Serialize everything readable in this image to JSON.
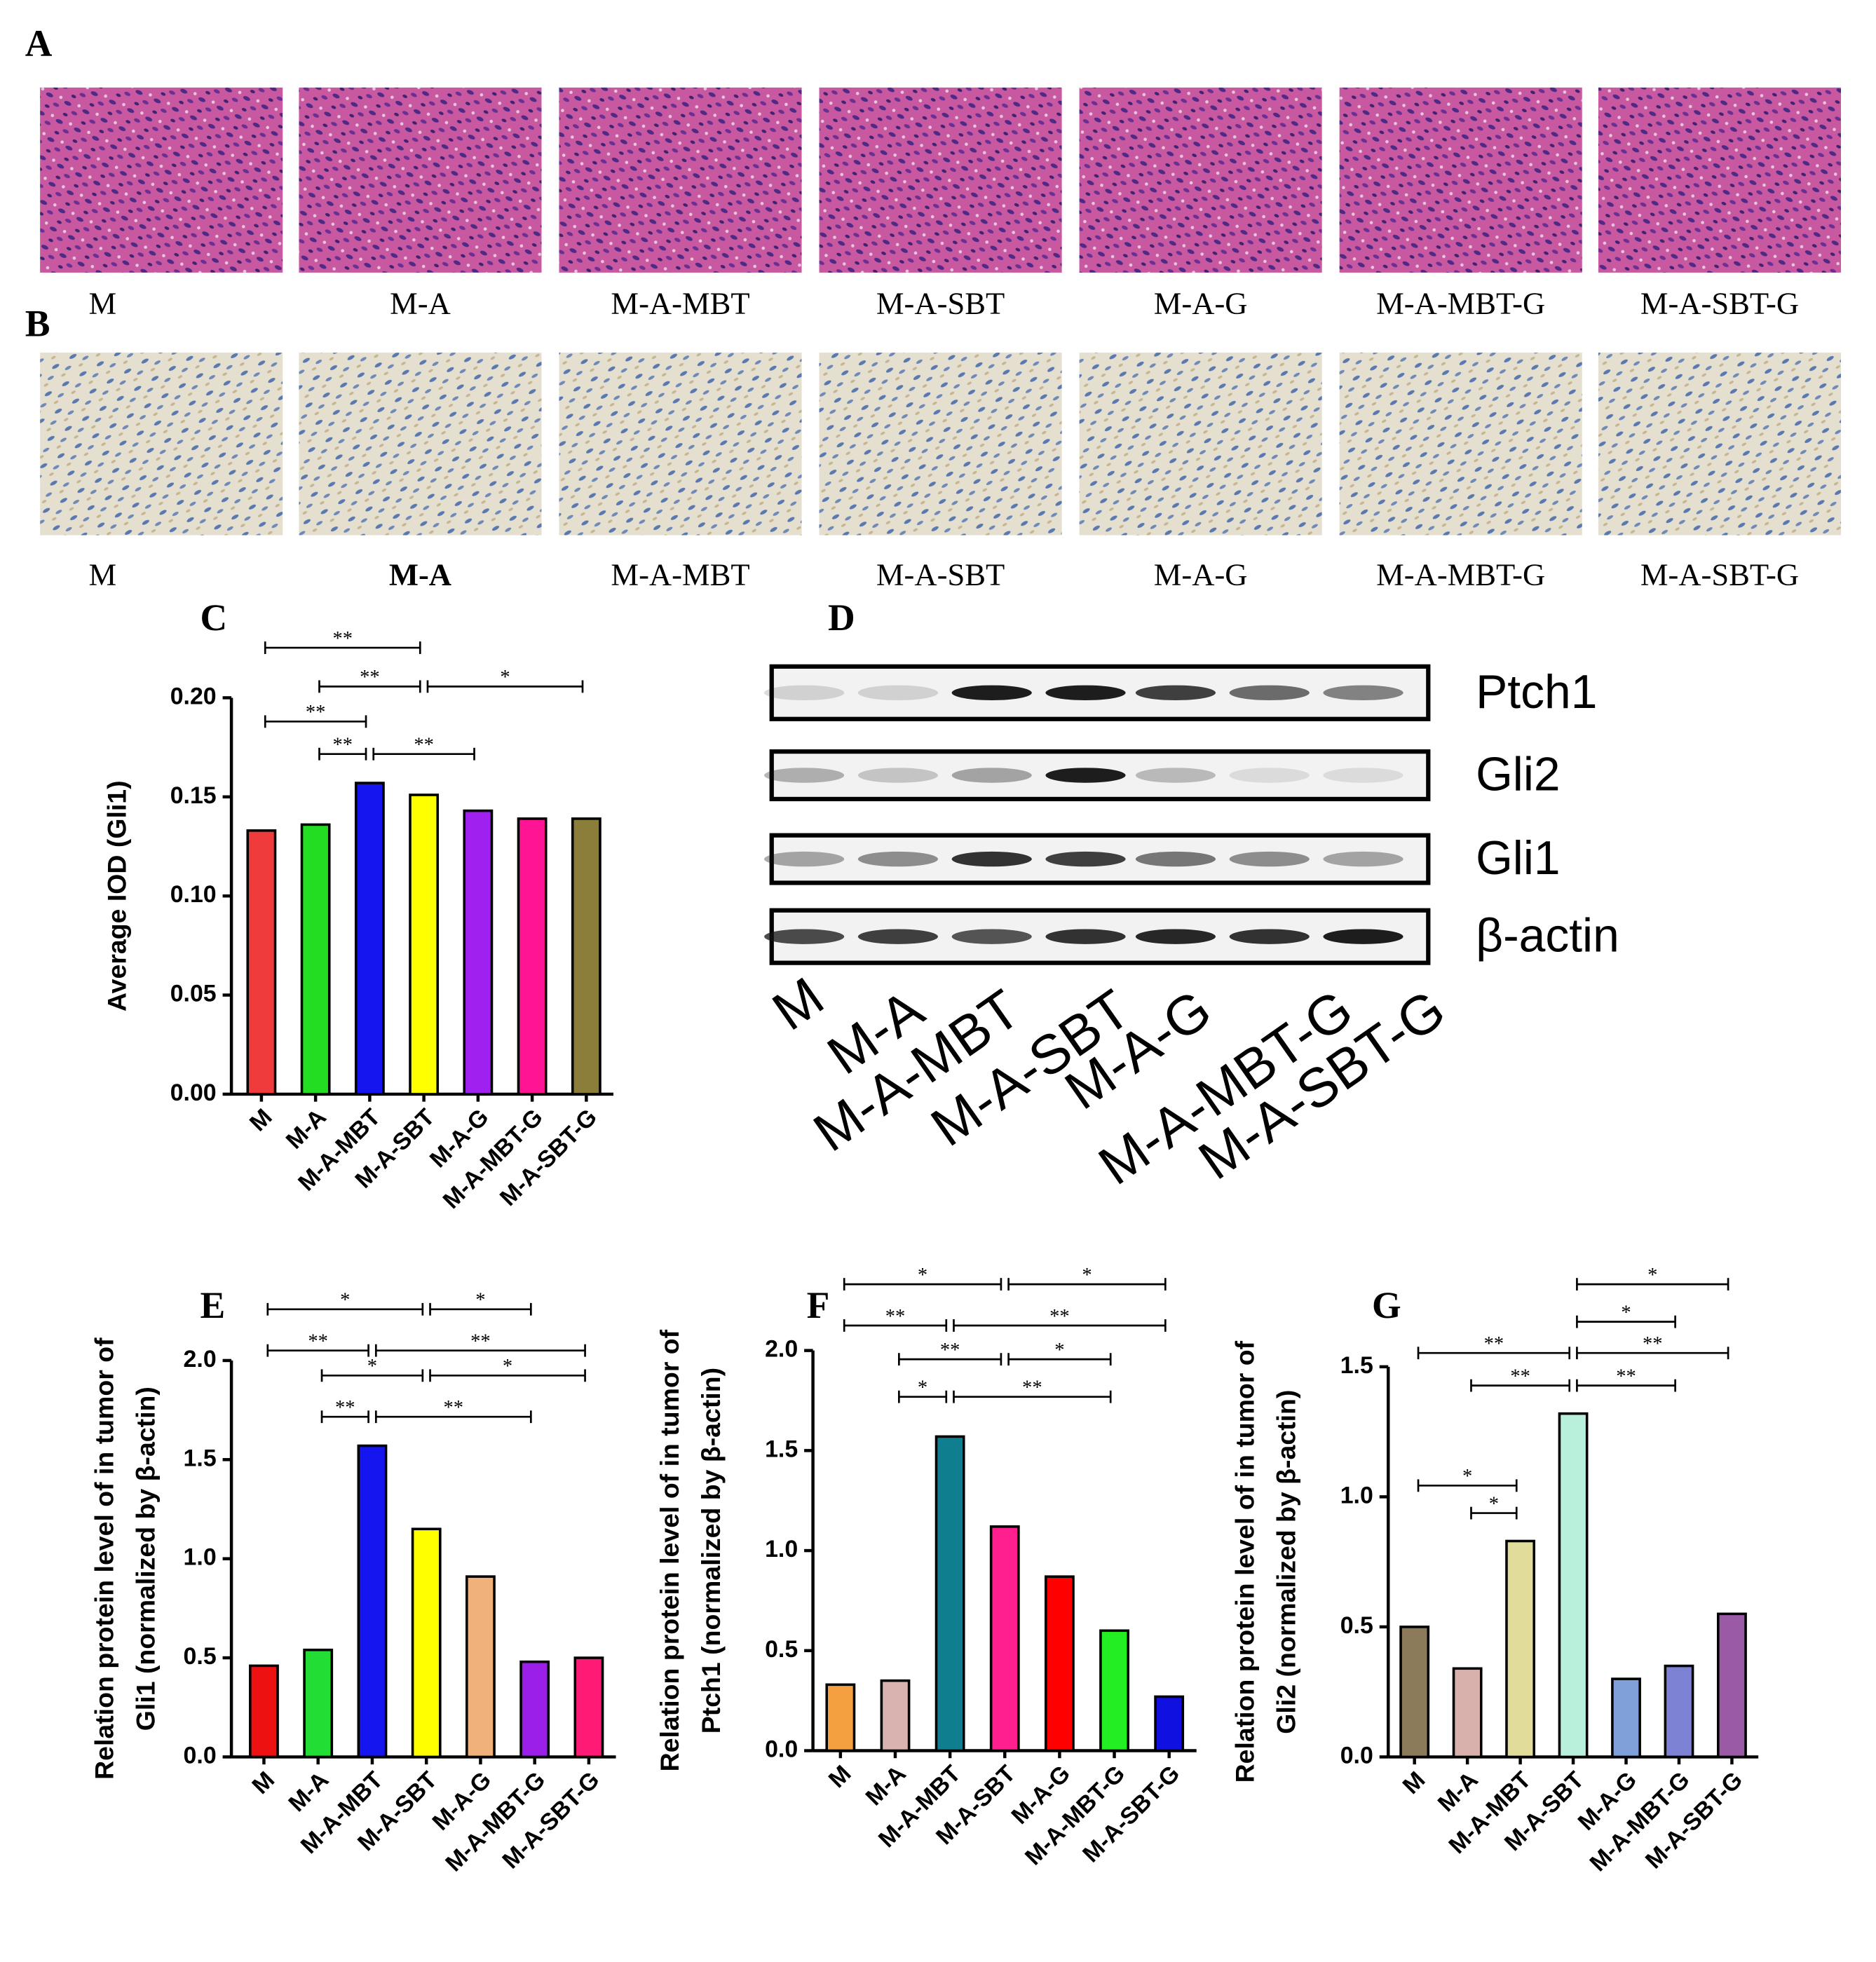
{
  "panel_labels": [
    "A",
    "B",
    "C",
    "D",
    "E",
    "F",
    "G"
  ],
  "he_stain": {
    "labels": [
      "M",
      "M-A",
      "M-A-MBT",
      "M-A-SBT",
      "M-A-G",
      "M-A-MBT-G",
      "M-A-SBT-G"
    ]
  },
  "ihc_stain": {
    "labels": [
      "M",
      "M-A",
      "M-A-MBT",
      "M-A-SBT",
      "M-A-G",
      "M-A-MBT-G",
      "M-A-SBT-G"
    ]
  },
  "western_blot": {
    "proteins": [
      "Ptch1",
      "Gli2",
      "Gli1",
      "β-actin"
    ],
    "lanes": [
      "M",
      "M-A",
      "M-A-MBT",
      "M-A-SBT",
      "M-A-G",
      "M-A-MBT-G",
      "M-A-SBT-G"
    ]
  },
  "chart_data": [
    {
      "type": "bar",
      "ylabel": [
        "Average IOD (Gli1)"
      ],
      "categories": [
        "M",
        "M-A",
        "M-A-MBT",
        "M-A-SBT",
        "M-A-G",
        "M-A-MBT-G",
        "M-A-SBT-G"
      ],
      "values": [
        0.133,
        0.136,
        0.157,
        0.151,
        0.143,
        0.139,
        0.139
      ],
      "colors": [
        "#ef3b3b",
        "#22dd22",
        "#1515f0",
        "#ffff00",
        "#a020f0",
        "#ff1493",
        "#8b7d3a"
      ],
      "ylim": [
        0,
        0.2
      ],
      "yticks": [
        {
          "value": 0,
          "label": "0.00"
        },
        0.05,
        {
          "value": 0.1,
          "label": "0.10"
        },
        0.15,
        {
          "value": 0.2,
          "label": "0.20"
        }
      ],
      "annotations": [
        "**",
        "**",
        "*",
        "**",
        "**",
        "**"
      ]
    },
    {
      "type": "bar",
      "ylabel": [
        "Relation protein level of in tumor of",
        "Gli1 (normalized by β-actin)"
      ],
      "categories": [
        "M",
        "M-A",
        "M-A-MBT",
        "M-A-SBT",
        "M-A-G",
        "M-A-MBT-G",
        "M-A-SBT-G"
      ],
      "values": [
        0.46,
        0.54,
        1.57,
        1.15,
        0.91,
        0.48,
        0.5
      ],
      "colors": [
        "#ee1111",
        "#22dd33",
        "#1515f0",
        "#ffff00",
        "#f0b27a",
        "#9b1fe8",
        "#ff1a75"
      ],
      "ylim": [
        0,
        2
      ],
      "yticks": [
        {
          "value": 0,
          "label": "0.0"
        },
        0.5,
        {
          "value": 1,
          "label": "1.0"
        },
        1.5,
        {
          "value": 2,
          "label": "2.0"
        }
      ],
      "annotations": [
        "*",
        "*",
        "**",
        "**",
        "*",
        "*",
        "**",
        "**"
      ]
    },
    {
      "type": "bar",
      "ylabel": [
        "Relation protein level of in tumor of",
        "Ptch1 (normalized by β-actin)"
      ],
      "categories": [
        "M",
        "M-A",
        "M-A-MBT",
        "M-A-SBT",
        "M-A-G",
        "M-A-MBT-G",
        "M-A-SBT-G"
      ],
      "values": [
        0.33,
        0.35,
        1.57,
        1.12,
        0.87,
        0.6,
        0.27
      ],
      "colors": [
        "#f5a040",
        "#d9b3b0",
        "#0f7f90",
        "#ff1f8f",
        "#ff0000",
        "#22ee22",
        "#1010e0"
      ],
      "ylim": [
        0,
        2
      ],
      "yticks": [
        {
          "value": 0,
          "label": "0.0"
        },
        0.5,
        {
          "value": 1,
          "label": "1.0"
        },
        1.5,
        {
          "value": 2,
          "label": "2.0"
        }
      ],
      "annotations": [
        "*",
        "*",
        "**",
        "**",
        "**",
        "*",
        "*",
        "**"
      ]
    },
    {
      "type": "bar",
      "ylabel": [
        "Relation protein level of in tumor of",
        "Gli2 (normalized by β-actin)"
      ],
      "categories": [
        "M",
        "M-A",
        "M-A-MBT",
        "M-A-SBT",
        "M-A-G",
        "M-A-MBT-G",
        "M-A-SBT-G"
      ],
      "values": [
        0.5,
        0.34,
        0.83,
        1.32,
        0.3,
        0.35,
        0.55
      ],
      "colors": [
        "#8c7b5a",
        "#d8b0ac",
        "#e2dc9a",
        "#b9f0dc",
        "#7fa0d8",
        "#7e82d4",
        "#9a5aa6"
      ],
      "ylim": [
        0,
        1.5
      ],
      "yticks": [
        {
          "value": 0,
          "label": "0.0"
        },
        0.5,
        {
          "value": 1,
          "label": "1.0"
        },
        1.5
      ],
      "annotations": [
        "*",
        "*",
        "**",
        "**",
        "**",
        "**",
        "*",
        "*"
      ]
    }
  ]
}
